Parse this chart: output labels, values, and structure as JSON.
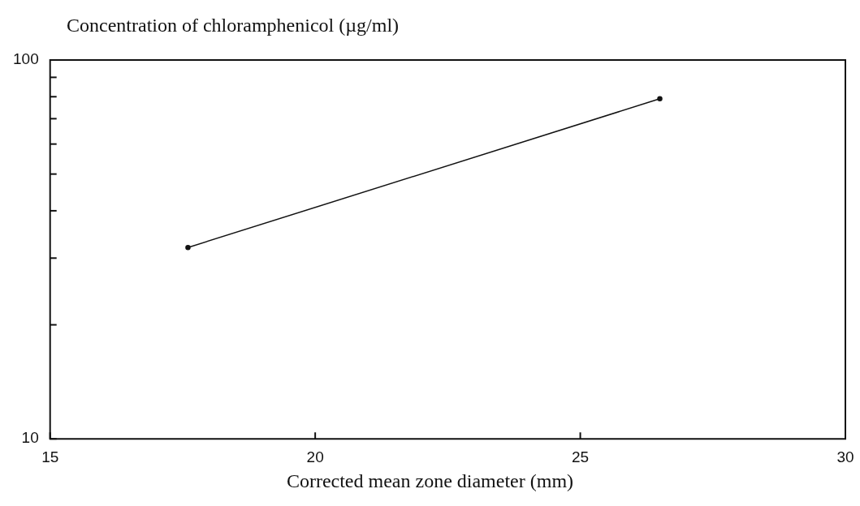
{
  "chart_data": {
    "type": "line",
    "ylabel": "Concentration of chloramphenicol (µg/ml)",
    "xlabel": "Corrected mean zone diameter (mm)",
    "x": [
      17.6,
      26.5
    ],
    "series": [
      {
        "color": "#111111",
        "values": [
          32,
          79
        ]
      }
    ],
    "xlim": [
      15,
      30
    ],
    "xticks": [
      15,
      20,
      25,
      30
    ],
    "ylim": [
      10,
      100
    ],
    "yticks": [
      10,
      {
        "value": 20,
        "label": null
      },
      {
        "value": 30,
        "label": null
      },
      {
        "value": 40,
        "label": null
      },
      {
        "value": 50,
        "label": null
      },
      {
        "value": 60,
        "label": null
      },
      {
        "value": 70,
        "label": null
      },
      {
        "value": 80,
        "label": null
      },
      {
        "value": 90,
        "label": null
      },
      100
    ],
    "log": true,
    "grid": false,
    "legend": false,
    "marker": "circle",
    "line_style": "solid"
  }
}
